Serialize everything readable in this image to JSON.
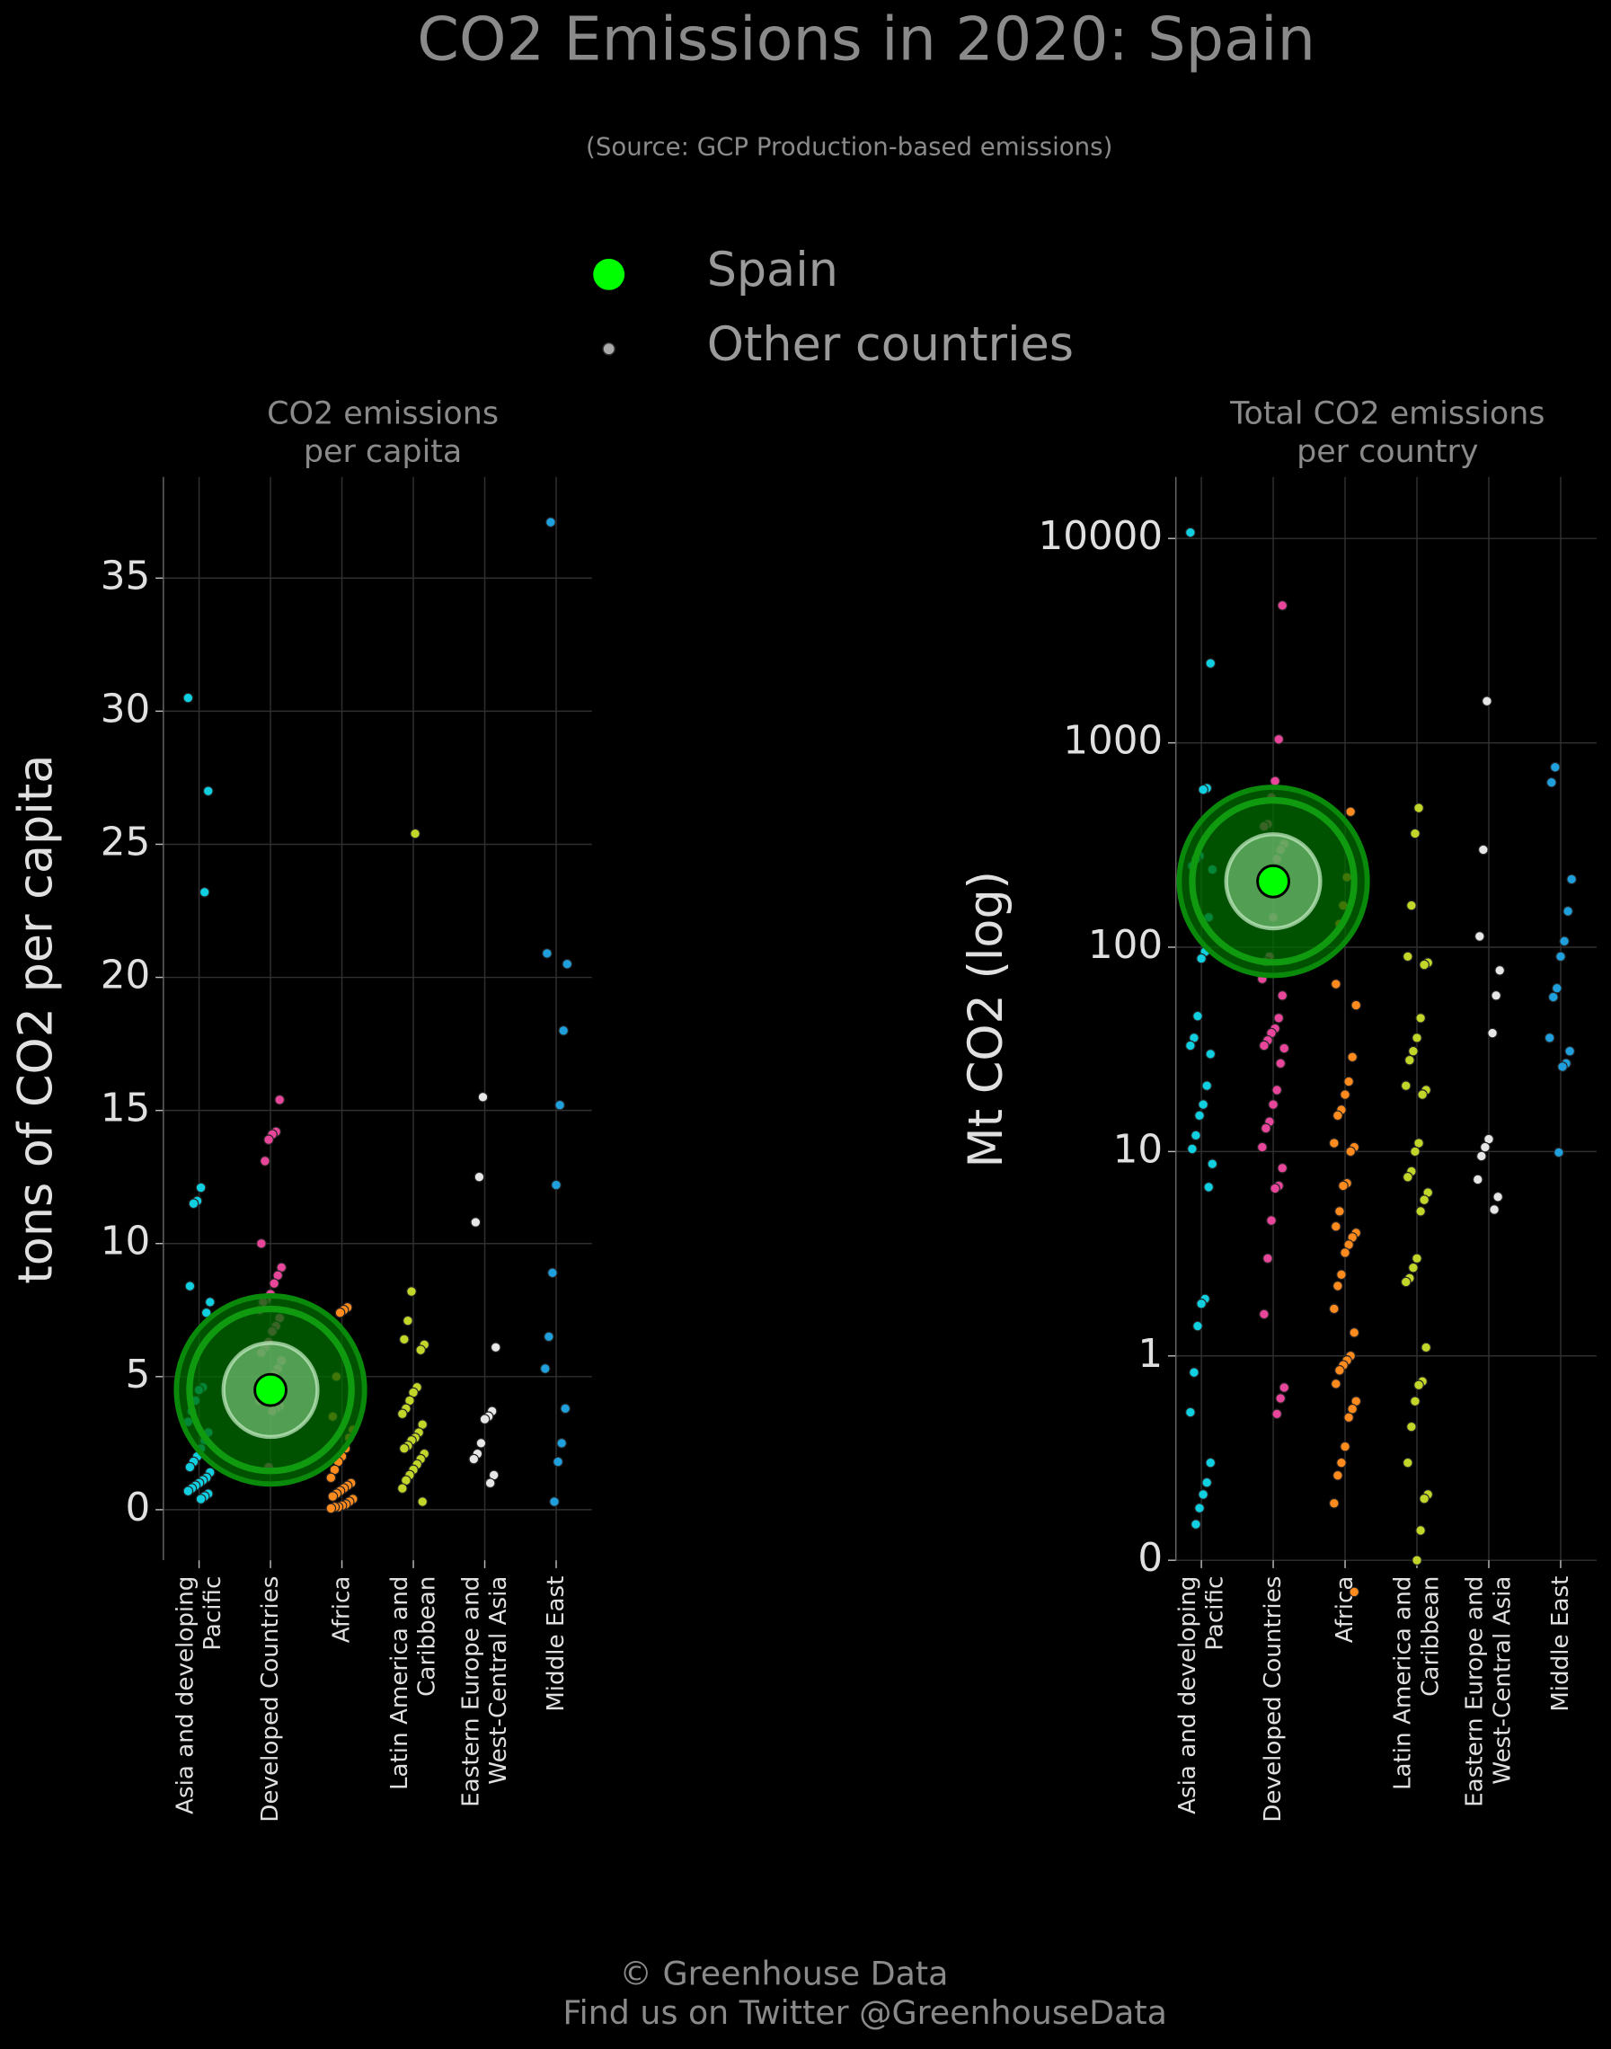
{
  "title": "CO2 Emissions in 2020: Spain",
  "subtitle": "(Source: GCP Production-based emissions)",
  "legend_other": "Other countries",
  "footer": [
    "© Greenhouse Data",
    "Find us on Twitter @GreenhouseData"
  ],
  "chart_data": [
    {
      "type": "strip",
      "title": "CO2 emissions\nper capita",
      "ylabel": "tons of CO2 per capita",
      "categories": [
        "Asia and developing\nPacific",
        "Developed Countries",
        "Africa",
        "Latin America and\nCaribbean",
        "Eastern Europe and\nWest-Central Asia",
        "Middle East"
      ],
      "ylim": [
        -1.9,
        38.8
      ],
      "yticks": [
        0,
        5,
        10,
        15,
        20,
        25,
        30,
        35
      ],
      "log": false,
      "grid": true,
      "series": [
        {
          "color": "#10cfe0",
          "values": [
            30.5,
            27,
            23.2,
            12.1,
            11.6,
            11.5,
            8.4,
            7.8,
            7.4,
            4.6,
            4.5,
            4.1,
            3.7,
            3.3,
            2.9,
            2.6,
            2.3,
            2.0,
            1.8,
            1.6,
            1.4,
            1.2,
            1.1,
            1.0,
            0.9,
            0.8,
            0.7,
            0.6,
            0.5,
            0.4
          ]
        },
        {
          "color": "#e8469a",
          "values": [
            15.4,
            14.2,
            14.1,
            13.9,
            13.1,
            10.0,
            9.1,
            8.8,
            8.5,
            8.1,
            7.9,
            7.8,
            7.5,
            7.2,
            6.9,
            6.7,
            6.3,
            6.1,
            5.9,
            5.6,
            5.3,
            5.1,
            4.9,
            4.7,
            4.3,
            4.1,
            3.9,
            3.8,
            3.7,
            1.6
          ]
        },
        {
          "color": "#ff8a1e",
          "values": [
            7.6,
            7.5,
            7.4,
            5.0,
            3.5,
            3.0,
            2.7,
            2.3,
            2.0,
            1.8,
            1.5,
            1.2,
            1.0,
            0.9,
            0.8,
            0.7,
            0.6,
            0.5,
            0.4,
            0.3,
            0.2,
            0.15,
            0.1,
            0.1,
            0.05
          ]
        },
        {
          "color": "#c2d62a",
          "values": [
            25.4,
            8.2,
            7.1,
            6.4,
            6.2,
            6.0,
            4.6,
            4.4,
            4.1,
            3.8,
            3.6,
            3.2,
            2.9,
            2.7,
            2.6,
            2.4,
            2.3,
            2.1,
            1.9,
            1.7,
            1.5,
            1.3,
            1.1,
            0.8,
            0.3
          ]
        },
        {
          "color": "#e6e6e6",
          "values": [
            15.5,
            12.5,
            10.8,
            6.1,
            3.7,
            3.5,
            3.4,
            2.5,
            2.1,
            1.9,
            1.3,
            1.0
          ]
        },
        {
          "color": "#1fa0dc",
          "values": [
            37.1,
            20.9,
            20.5,
            18.0,
            15.2,
            12.2,
            8.9,
            6.5,
            5.3,
            3.8,
            2.5,
            1.8,
            0.3
          ]
        }
      ],
      "highlight": {
        "name": "Spain",
        "category": 1,
        "value": 4.5,
        "color": "#00ff00"
      }
    },
    {
      "type": "strip",
      "title": "Total CO2 emissions\nper country",
      "ylabel": "Mt CO2 (log)",
      "categories": [
        "Asia and developing\nPacific",
        "Developed Countries",
        "Africa",
        "Latin America and\nCaribbean",
        "Eastern Europe and\nWest-Central Asia",
        "Middle East"
      ],
      "ylim": [
        0.1,
        20000
      ],
      "yticks": [
        {
          "value": 0.1,
          "label": "0"
        },
        1,
        10,
        100,
        1000,
        10000
      ],
      "log": true,
      "grid": true,
      "series": [
        {
          "color": "#10cfe0",
          "values": [
            10700,
            2450,
            600,
            590,
            280,
            270,
            250,
            240,
            140,
            95,
            88,
            46,
            36,
            33,
            30,
            21,
            17,
            15,
            12,
            10.3,
            8.7,
            6.7,
            1.9,
            1.8,
            1.4,
            0.83,
            0.53,
            0.3,
            0.24,
            0.21,
            0.18,
            0.15
          ]
        },
        {
          "color": "#e8469a",
          "values": [
            4700,
            1040,
            650,
            540,
            400,
            390,
            320,
            300,
            270,
            140,
            90,
            85,
            70,
            58,
            45,
            40,
            38,
            35,
            33,
            32,
            27,
            20,
            17,
            14,
            13,
            10.5,
            8.3,
            6.8,
            6.6,
            4.6,
            3.0,
            1.6,
            0.7,
            0.62,
            0.52
          ]
        },
        {
          "color": "#ff8a1e",
          "values": [
            460,
            220,
            160,
            130,
            66,
            52,
            29,
            22,
            19,
            16,
            15,
            11,
            10.5,
            10,
            7,
            6.8,
            5.1,
            4.3,
            4,
            3.8,
            3.5,
            3.2,
            2.5,
            2.2,
            1.7,
            1.3,
            1.0,
            0.95,
            0.9,
            0.85,
            0.73,
            0.6,
            0.55,
            0.5,
            0.36,
            0.3,
            0.26,
            0.19,
            0.07
          ]
        },
        {
          "color": "#c2d62a",
          "values": [
            480,
            360,
            160,
            90,
            84,
            82,
            45,
            36,
            31,
            28,
            21,
            20,
            19,
            11,
            10,
            8,
            7.5,
            6.3,
            5.8,
            5.1,
            3.0,
            2.7,
            2.4,
            2.3,
            1.1,
            0.75,
            0.72,
            0.6,
            0.45,
            0.3,
            0.21,
            0.2,
            0.14,
            0.1
          ]
        },
        {
          "color": "#e6e6e6",
          "values": [
            1600,
            300,
            113,
            77,
            58,
            38,
            11.5,
            10.5,
            9.5,
            7.3,
            6,
            5.2
          ]
        },
        {
          "color": "#1fa0dc",
          "values": [
            760,
            640,
            215,
            150,
            107,
            90,
            63,
            57,
            36,
            31,
            27,
            26,
            9.9
          ]
        }
      ],
      "highlight": {
        "name": "Spain",
        "category": 1,
        "value": 210,
        "color": "#00ff00"
      }
    }
  ]
}
